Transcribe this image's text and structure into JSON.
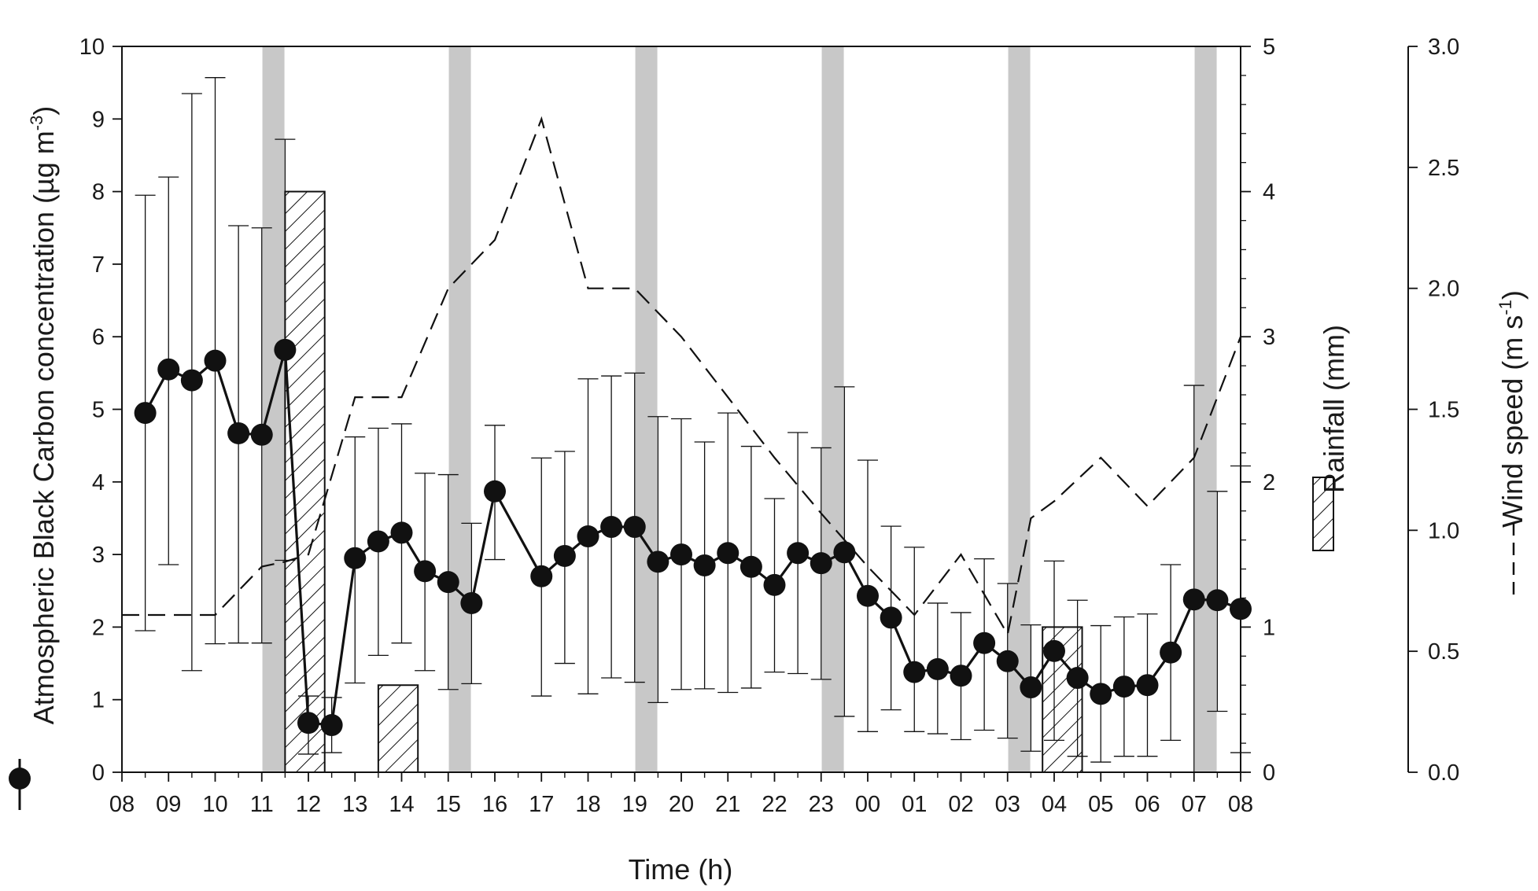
{
  "chart_data": {
    "type": "line",
    "xlabel": "Time (h)",
    "x_tick_labels": [
      "08",
      "09",
      "10",
      "11",
      "12",
      "13",
      "14",
      "15",
      "16",
      "17",
      "18",
      "19",
      "20",
      "21",
      "22",
      "23",
      "00",
      "01",
      "02",
      "03",
      "04",
      "05",
      "06",
      "07",
      "08"
    ],
    "ylabel_left": {
      "main": "Atmospheric Black Carbon concentration (µg m",
      "sup": "-3",
      "close": ")"
    },
    "ylim_left": [
      0,
      10
    ],
    "yticks_left": [
      "0",
      "1",
      "2",
      "3",
      "4",
      "5",
      "6",
      "7",
      "8",
      "9",
      "10"
    ],
    "ylabel_right1": "Rainfall (mm)",
    "ylim_right1": [
      0,
      5
    ],
    "yticks_right1": [
      "0",
      "1",
      "2",
      "3",
      "4",
      "5"
    ],
    "ylabel_right2": {
      "main": "Wind speed (m s",
      "sup": "-1",
      "close": ")"
    },
    "ylim_right2": [
      0,
      3
    ],
    "yticks_right2": [
      "0.0",
      "0.5",
      "1.0",
      "1.5",
      "2.0",
      "2.5",
      "3.0"
    ],
    "grid": false,
    "night_shading_hours": [
      3.25,
      7.25,
      11.25,
      15.25,
      19.25,
      23.25
    ],
    "series": [
      {
        "axis": "left",
        "style": "line-markers-errorbars",
        "x": [
          0.5,
          1,
          1.5,
          2,
          2.5,
          3,
          3.5,
          4,
          4.5,
          5,
          5.5,
          6,
          6.5,
          7,
          7.5,
          8,
          9,
          9.5,
          10,
          10.5,
          11,
          11.5,
          12,
          12.5,
          13,
          13.5,
          14,
          14.5,
          15,
          15.5,
          16,
          16.5,
          17,
          17.5,
          18,
          18.5,
          19,
          19.5,
          20,
          20.5,
          21,
          21.5,
          22,
          22.5,
          23,
          23.5,
          24
        ],
        "y": [
          4.95,
          5.55,
          5.4,
          5.67,
          4.67,
          4.65,
          5.82,
          0.68,
          0.65,
          2.95,
          3.18,
          3.3,
          2.77,
          2.62,
          2.33,
          3.87,
          2.7,
          2.98,
          3.25,
          3.38,
          3.38,
          2.9,
          3.0,
          2.85,
          3.02,
          2.83,
          2.58,
          3.02,
          2.88,
          3.03,
          2.43,
          2.13,
          1.38,
          1.42,
          1.33,
          1.78,
          1.53,
          1.17,
          1.67,
          1.3,
          1.08,
          1.18,
          1.2,
          1.65,
          2.38,
          2.37,
          2.25
        ],
        "err_high": [
          7.95,
          8.2,
          9.35,
          9.57,
          7.53,
          7.5,
          8.72,
          1.05,
          1.03,
          4.62,
          4.74,
          4.8,
          4.12,
          4.1,
          3.43,
          4.78,
          4.33,
          4.42,
          5.42,
          5.46,
          5.5,
          4.9,
          4.87,
          4.55,
          4.95,
          4.49,
          3.77,
          4.68,
          4.47,
          5.31,
          4.3,
          3.39,
          3.1,
          2.33,
          2.2,
          2.94,
          2.6,
          2.03,
          2.91,
          2.37,
          2.02,
          2.14,
          2.18,
          2.86,
          5.33,
          3.87,
          4.22
        ],
        "err_low": [
          1.95,
          2.86,
          1.4,
          1.77,
          1.78,
          1.78,
          2.92,
          0.25,
          0.27,
          1.23,
          1.61,
          1.78,
          1.4,
          1.14,
          1.22,
          2.93,
          1.05,
          1.5,
          1.08,
          1.3,
          1.24,
          0.96,
          1.14,
          1.15,
          1.1,
          1.16,
          1.38,
          1.36,
          1.28,
          0.77,
          0.56,
          0.86,
          0.56,
          0.53,
          0.45,
          0.58,
          0.47,
          0.29,
          0.44,
          0.22,
          0.14,
          0.22,
          0.22,
          0.44,
          0.0,
          0.84,
          0.27
        ]
      },
      {
        "axis": "right1",
        "style": "hatched-bars",
        "bars": [
          {
            "x_start": 3.5,
            "x_end": 4.35,
            "value": 4.0
          },
          {
            "x_start": 5.5,
            "x_end": 6.35,
            "value": 0.6
          },
          {
            "x_start": 19.75,
            "x_end": 20.6,
            "value": 1.0
          }
        ]
      },
      {
        "axis": "right2",
        "style": "dashed-line",
        "x": [
          0,
          1,
          2,
          3,
          3.5,
          4,
          5,
          6,
          7,
          8,
          9,
          10,
          11,
          12,
          13,
          14,
          15,
          16,
          17,
          18,
          19,
          19.5,
          20,
          21,
          22,
          23,
          24
        ],
        "y": [
          0.65,
          0.65,
          0.65,
          0.85,
          0.87,
          0.9,
          1.55,
          1.55,
          2.0,
          2.2,
          2.7,
          2.0,
          2.0,
          1.8,
          1.55,
          1.3,
          1.07,
          0.85,
          0.65,
          0.9,
          0.57,
          1.05,
          1.12,
          1.3,
          1.1,
          1.3,
          1.8
        ]
      }
    ]
  }
}
